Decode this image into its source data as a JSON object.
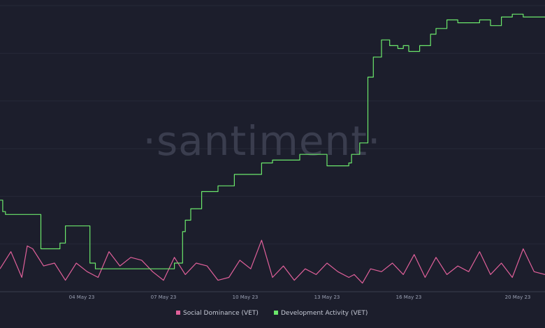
{
  "watermark": "·santiment·",
  "chart_data": {
    "type": "line",
    "title": "",
    "xlabel": "",
    "ylabel": "",
    "x_ticks": [
      "04 May 23",
      "07 May 23",
      "10 May 23",
      "13 May 23",
      "16 May 23",
      "20 May 23"
    ],
    "x_range": [
      "01 May 23",
      "21 May 23"
    ],
    "grid": true,
    "legend_position": "bottom-center",
    "series": [
      {
        "name": "Social Dominance (VET)",
        "color": "#e0609a",
        "ylim": [
          0,
          100
        ],
        "x": [
          0,
          0.4,
          0.8,
          1.0,
          1.2,
          1.6,
          2.0,
          2.4,
          2.8,
          3.2,
          3.6,
          4.0,
          4.4,
          4.8,
          5.2,
          5.6,
          6.0,
          6.4,
          6.8,
          7.2,
          7.6,
          8.0,
          8.4,
          8.8,
          9.2,
          9.6,
          10.0,
          10.4,
          10.8,
          11.2,
          11.6,
          12.0,
          12.4,
          12.8,
          13.0,
          13.3,
          13.6,
          14.0,
          14.4,
          14.8,
          15.2,
          15.6,
          16.0,
          16.4,
          16.8,
          17.2,
          17.6,
          18.0,
          18.4,
          18.8,
          19.2,
          19.6,
          20.0
        ],
        "values": [
          8,
          14,
          5,
          16,
          15,
          9,
          10,
          4,
          10,
          7,
          5,
          14,
          9,
          12,
          11,
          7,
          4,
          12,
          6,
          10,
          9,
          4,
          5,
          11,
          8,
          18,
          5,
          9,
          4,
          8,
          6,
          10,
          7,
          5,
          6,
          3,
          8,
          7,
          10,
          6,
          13,
          5,
          12,
          6,
          9,
          7,
          14,
          6,
          10,
          5,
          15,
          7,
          6
        ]
      },
      {
        "name": "Development Activity (VET)",
        "color": "#6be86b",
        "ylim": [
          0,
          100
        ],
        "x": [
          0,
          0.1,
          0.2,
          0.6,
          1.1,
          1.5,
          1.6,
          2.0,
          2.2,
          2.4,
          3.0,
          3.3,
          3.5,
          4.0,
          4.5,
          5.0,
          5.5,
          6.0,
          6.4,
          6.7,
          6.8,
          7.0,
          7.2,
          7.4,
          7.6,
          8.0,
          8.6,
          8.8,
          9.2,
          9.6,
          10.0,
          10.5,
          11.0,
          11.2,
          11.6,
          12.0,
          12.6,
          12.8,
          12.9,
          13.2,
          13.5,
          13.7,
          14.0,
          14.3,
          14.6,
          14.8,
          15.0,
          15.4,
          15.8,
          16.0,
          16.4,
          16.8,
          17.2,
          17.6,
          18.0,
          18.4,
          18.8,
          19.2,
          19.8,
          20.0
        ],
        "values": [
          32,
          28,
          27,
          27,
          27,
          15,
          15,
          15,
          17,
          23,
          23,
          10,
          8,
          8,
          8,
          8,
          8,
          8,
          10,
          21,
          25,
          29,
          29,
          35,
          35,
          37,
          41,
          41,
          41,
          45,
          46,
          46,
          48,
          48,
          48,
          44,
          44,
          45,
          48,
          52,
          75,
          82,
          88,
          86,
          85,
          86,
          84,
          86,
          90,
          92,
          95,
          94,
          94,
          95,
          93,
          96,
          97,
          96,
          96,
          96
        ]
      }
    ]
  }
}
